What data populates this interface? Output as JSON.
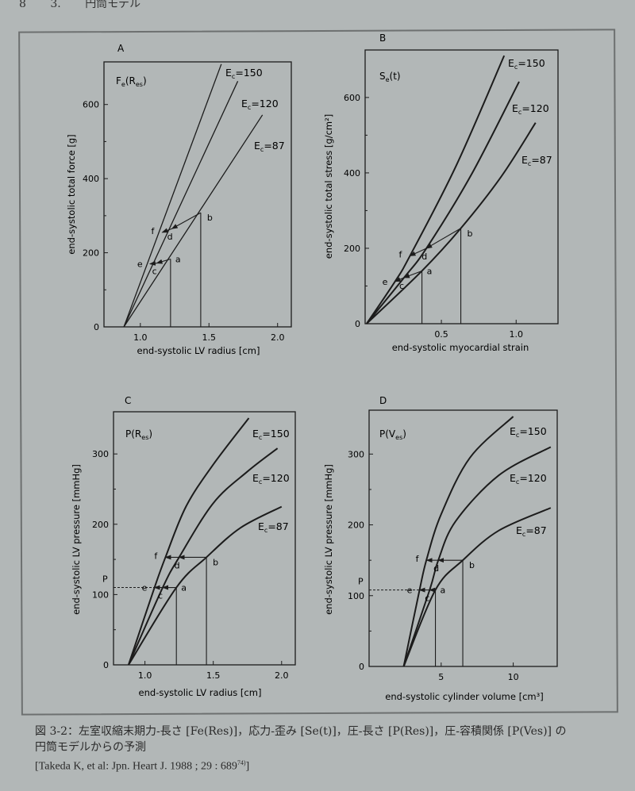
{
  "header": {
    "page_number": "8",
    "section": "3.",
    "section_title": "円筒モデル"
  },
  "caption": {
    "line1": "図 3-2：左室収縮末期力-長さ [Fe(Res)]，応力-歪み [Se(t)]，圧-長さ [P(Res)]，圧-容積関係 [P(Ves)] の",
    "line2": "円筒モデルからの予測",
    "citation": "[Takeda K, et al: Jpn. Heart J. 1988 ; 29 : 689",
    "citation_ref": "74)",
    "citation_end": "]"
  },
  "colors": {
    "ink": "#1c1c1c",
    "background": "#b2b7b7"
  },
  "chart_data": [
    {
      "panel": "A",
      "type": "line",
      "function_label": [
        {
          "t": "F"
        },
        {
          "t": "e",
          "sub": true
        },
        {
          "t": "(R"
        },
        {
          "t": "es",
          "sub": true
        },
        {
          "t": ")"
        }
      ],
      "xlabel": "end-systolic LV radius [cm]",
      "ylabel": "end-systolic total force [g]",
      "xlim": [
        0.735,
        2.1
      ],
      "ylim": [
        0,
        715
      ],
      "xticks": [
        {
          "v": 1.0,
          "l": "1.0"
        },
        {
          "v": 1.5,
          "l": "1.5"
        },
        {
          "v": 2.0,
          "l": "2.0"
        }
      ],
      "yticks": [
        {
          "v": 0,
          "l": "0"
        },
        {
          "v": 200,
          "l": "200"
        },
        {
          "v": 400,
          "l": "400"
        },
        {
          "v": 600,
          "l": "600"
        }
      ],
      "yminor": [
        100,
        300,
        500
      ],
      "series": [
        {
          "name": "Ec=150",
          "sym": "E",
          "sub": "c",
          "rest": "=150",
          "points": [
            [
              0.88,
              0
            ],
            [
              1.59,
              709
            ]
          ]
        },
        {
          "name": "Ec=120",
          "sym": "E",
          "sub": "c",
          "rest": "=120",
          "points": [
            [
              0.88,
              0
            ],
            [
              1.71,
              663
            ]
          ]
        },
        {
          "name": "Ec=87",
          "sym": "E",
          "sub": "c",
          "rest": "=87",
          "points": [
            [
              0.88,
              0
            ],
            [
              1.89,
              572
            ]
          ]
        }
      ],
      "points": {
        "a": [
          1.22,
          183
        ],
        "b": [
          1.44,
          308
        ],
        "c": [
          1.12,
          172
        ],
        "d": [
          1.23,
          265
        ],
        "e": [
          1.07,
          170
        ],
        "f": [
          1.16,
          255
        ]
      }
    },
    {
      "panel": "B",
      "type": "line",
      "function_label": [
        {
          "t": "S"
        },
        {
          "t": "e",
          "sub": true
        },
        {
          "t": "(t)"
        }
      ],
      "xlabel": "end-systolic myocardial strain",
      "ylabel": "end-systolic total stress [g/cm²]",
      "xlim": [
        -0.01,
        1.28
      ],
      "ylim": [
        0,
        726
      ],
      "xticks": [
        {
          "v": 0.5,
          "l": "0.5"
        },
        {
          "v": 1.0,
          "l": "1.0"
        }
      ],
      "yticks": [
        {
          "v": 0,
          "l": "0"
        },
        {
          "v": 200,
          "l": "200"
        },
        {
          "v": 400,
          "l": "400"
        },
        {
          "v": 600,
          "l": "600"
        }
      ],
      "yminor": [
        100,
        300,
        500
      ],
      "series": [
        {
          "name": "Ec=150",
          "sym": "E",
          "sub": "c",
          "rest": "=150",
          "points": [
            [
              0,
              0
            ],
            [
              0.19,
              112
            ],
            [
              0.29,
              180
            ],
            [
              0.6,
              420
            ],
            [
              0.92,
              711
            ]
          ]
        },
        {
          "name": "Ec=120",
          "sym": "E",
          "sub": "c",
          "rest": "=120",
          "points": [
            [
              0,
              0
            ],
            [
              0.25,
              122
            ],
            [
              0.4,
              200
            ],
            [
              0.7,
              395
            ],
            [
              1.02,
              642
            ]
          ]
        },
        {
          "name": "Ec=87",
          "sym": "E",
          "sub": "c",
          "rest": "=87",
          "points": [
            [
              0,
              0
            ],
            [
              0.37,
              140
            ],
            [
              0.63,
              253
            ],
            [
              0.9,
              390
            ],
            [
              1.13,
              533
            ]
          ]
        }
      ],
      "points": {
        "a": [
          0.37,
          140
        ],
        "b": [
          0.63,
          253
        ],
        "c": [
          0.25,
          122
        ],
        "d": [
          0.4,
          200
        ],
        "e": [
          0.19,
          112
        ],
        "f": [
          0.29,
          180
        ]
      }
    },
    {
      "panel": "C",
      "type": "line",
      "function_label": [
        {
          "t": "P(R"
        },
        {
          "t": "es",
          "sub": true
        },
        {
          "t": ")"
        }
      ],
      "xlabel": "end-systolic LV radius [cm]",
      "ylabel": "end-systolic LV pressure [mmHg]",
      "xlim": [
        0.77,
        2.1
      ],
      "ylim": [
        0,
        360
      ],
      "xticks": [
        {
          "v": 1.0,
          "l": "1.0"
        },
        {
          "v": 1.5,
          "l": "1.5"
        },
        {
          "v": 2.0,
          "l": "2.0"
        }
      ],
      "yticks": [
        {
          "v": 0,
          "l": "0"
        },
        {
          "v": 100,
          "l": "100"
        },
        {
          "v": 200,
          "l": "200"
        },
        {
          "v": 300,
          "l": "300"
        }
      ],
      "yminor": [
        50,
        150,
        250
      ],
      "series": [
        {
          "name": "Ec=150",
          "sym": "E",
          "sub": "c",
          "rest": "=150",
          "points": [
            [
              0.88,
              0
            ],
            [
              1.07,
              110
            ],
            [
              1.15,
              153
            ],
            [
              1.3,
              225
            ],
            [
              1.5,
              285
            ],
            [
              1.76,
              351
            ]
          ]
        },
        {
          "name": "Ec=120",
          "sym": "E",
          "sub": "c",
          "rest": "=120",
          "points": [
            [
              0.88,
              0
            ],
            [
              1.13,
              110
            ],
            [
              1.25,
              153
            ],
            [
              1.5,
              230
            ],
            [
              1.75,
              275
            ],
            [
              1.97,
              308
            ]
          ]
        },
        {
          "name": "Ec=87",
          "sym": "E",
          "sub": "c",
          "rest": "=87",
          "points": [
            [
              0.88,
              0
            ],
            [
              1.23,
              110
            ],
            [
              1.45,
              153
            ],
            [
              1.7,
              195
            ],
            [
              2.0,
              225
            ]
          ]
        }
      ],
      "points": {
        "a": [
          1.23,
          110
        ],
        "b": [
          1.45,
          153
        ],
        "c": [
          1.13,
          110
        ],
        "d": [
          1.25,
          153
        ],
        "e": [
          1.07,
          110
        ],
        "f": [
          1.15,
          153
        ]
      },
      "p_level": {
        "label": "P",
        "value": 110
      }
    },
    {
      "panel": "D",
      "type": "line",
      "function_label": [
        {
          "t": "P(V"
        },
        {
          "t": "es",
          "sub": true
        },
        {
          "t": ")"
        }
      ],
      "xlabel": "end-systolic cylinder volume [cm³]",
      "ylabel": "end-systolic LV pressure [mmHg]",
      "xlim": [
        0,
        13.05
      ],
      "ylim": [
        0,
        362
      ],
      "xticks": [
        {
          "v": 5,
          "l": "5"
        },
        {
          "v": 10,
          "l": "10"
        }
      ],
      "yticks": [
        {
          "v": 0,
          "l": "0"
        },
        {
          "v": 100,
          "l": "100"
        },
        {
          "v": 200,
          "l": "200"
        },
        {
          "v": 300,
          "l": "300"
        }
      ],
      "yminor": [
        50,
        150,
        250
      ],
      "series": [
        {
          "name": "Ec=150",
          "sym": "E",
          "sub": "c",
          "rest": "=150",
          "points": [
            [
              2.4,
              0
            ],
            [
              3.5,
              108
            ],
            [
              4.0,
              152
            ],
            [
              5,
              215
            ],
            [
              7,
              295
            ],
            [
              10,
              353
            ]
          ]
        },
        {
          "name": "Ec=120",
          "sym": "E",
          "sub": "c",
          "rest": "=120",
          "points": [
            [
              2.4,
              0
            ],
            [
              4.2,
              108
            ],
            [
              4.8,
              150
            ],
            [
              6,
              205
            ],
            [
              9,
              270
            ],
            [
              12.6,
              310
            ]
          ]
        },
        {
          "name": "Ec=87",
          "sym": "E",
          "sub": "c",
          "rest": "=87",
          "points": [
            [
              2.4,
              0
            ],
            [
              4.6,
              108
            ],
            [
              6.5,
              150
            ],
            [
              9,
              192
            ],
            [
              12.6,
              224
            ]
          ]
        }
      ],
      "points": {
        "a": [
          4.6,
          108
        ],
        "b": [
          6.5,
          150
        ],
        "c": [
          4.2,
          108
        ],
        "d": [
          4.8,
          150
        ],
        "e": [
          3.5,
          108
        ],
        "f": [
          4.0,
          150
        ]
      },
      "p_level": {
        "label": "P",
        "value": 108
      }
    }
  ]
}
